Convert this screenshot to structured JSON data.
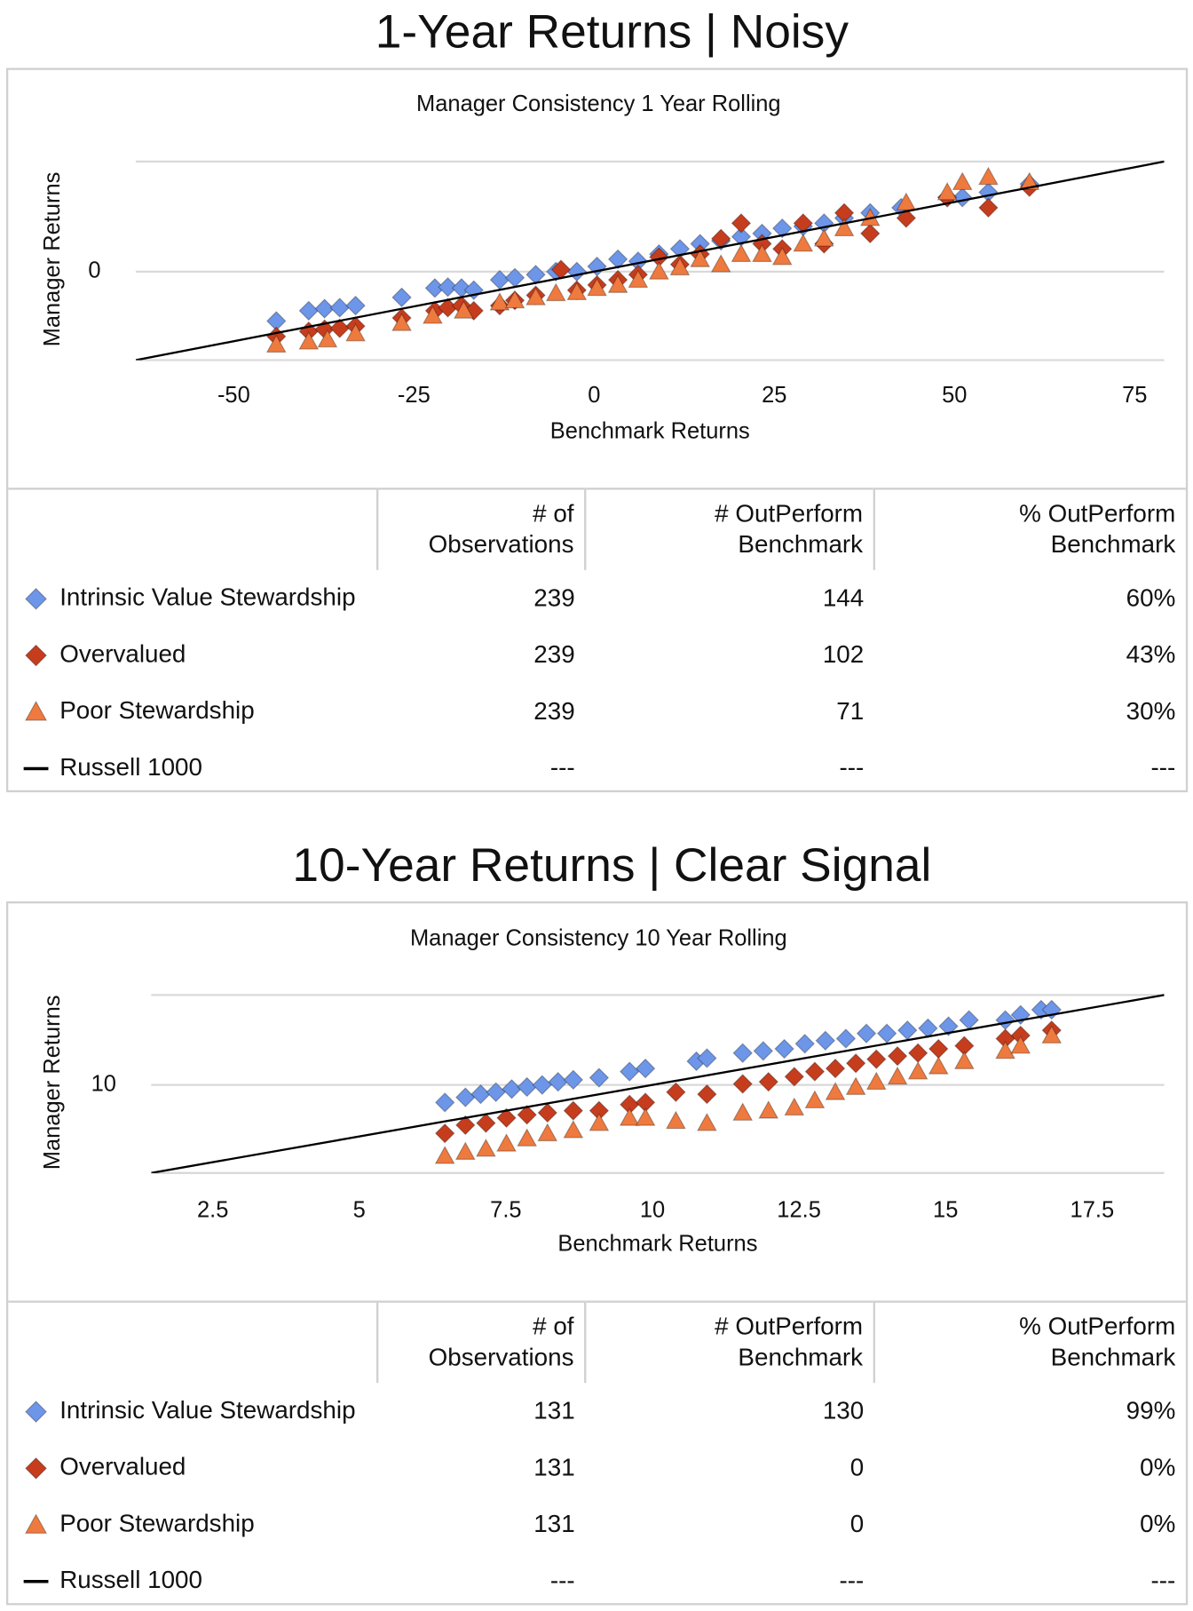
{
  "chart_data": [
    {
      "type": "scatter",
      "heading": "1-Year Returns | Noisy",
      "title": "Manager Consistency 1 Year Rolling",
      "xlabel": "Benchmark Returns",
      "ylabel": "Manager Returns",
      "xlim": [
        -63.6,
        79.1
      ],
      "ylim": [
        -63.6,
        79.1
      ],
      "xticks": [
        -50,
        -25,
        0,
        25,
        50,
        75
      ],
      "yticks": [
        0
      ],
      "grid": true,
      "series": [
        {
          "name": "Intrinsic Value Stewardship",
          "color": "#6d95e8",
          "marker": "diamond",
          "x": [
            -44.1,
            -39.6,
            -37.4,
            -35.3,
            -33.1,
            -26.7,
            -22.1,
            -20.3,
            -18.4,
            -16.7,
            -13.1,
            -11.0,
            -8.1,
            -5.3,
            -2.4,
            0.4,
            3.3,
            6.1,
            9.0,
            11.9,
            14.7,
            17.6,
            20.4,
            23.3,
            26.1,
            29.0,
            31.9,
            34.7,
            38.3,
            42.6,
            49.0,
            51.1,
            54.7,
            60.4
          ],
          "values": [
            -35.5,
            -28.1,
            -26.6,
            -25.9,
            -24.4,
            -18.5,
            -11.8,
            -11.1,
            -11.8,
            -13.3,
            -5.9,
            -4.4,
            -2.2,
            0,
            0,
            3.7,
            8.9,
            7.4,
            12.6,
            16.3,
            20.0,
            22.2,
            25.1,
            27.4,
            31.1,
            32.5,
            34.8,
            38.5,
            42.2,
            45.9,
            53.3,
            53.3,
            57.0,
            62.9
          ]
        },
        {
          "name": "Overvalued",
          "color": "#c63d1e",
          "marker": "diamond",
          "x": [
            -44.1,
            -39.6,
            -37.4,
            -35.3,
            -33.1,
            -26.7,
            -22.1,
            -20.3,
            -18.4,
            -16.7,
            -13.1,
            -11.0,
            -8.1,
            -4.6,
            -2.4,
            0.4,
            3.3,
            6.1,
            9.0,
            11.9,
            14.7,
            17.6,
            20.4,
            23.3,
            26.1,
            29.0,
            31.9,
            34.7,
            38.3,
            43.3,
            49.0,
            54.7,
            60.4
          ],
          "values": [
            -46.6,
            -42.9,
            -41.4,
            -40.7,
            -39.2,
            -33.3,
            -28.1,
            -25.9,
            -24.4,
            -28.1,
            -24.4,
            -20.7,
            -17.0,
            1.5,
            -13.3,
            -9.6,
            -5.9,
            -2.2,
            10.4,
            5.2,
            12.6,
            23.7,
            34.8,
            20.0,
            16.3,
            34.8,
            20.0,
            42.2,
            27.4,
            38.5,
            53.3,
            45.9,
            60.7
          ]
        },
        {
          "name": "Poor Stewardship",
          "color": "#ee7a3f",
          "marker": "triangle",
          "x": [
            -44.1,
            -39.6,
            -37.0,
            -33.1,
            -26.7,
            -22.4,
            -18.1,
            -13.1,
            -11.0,
            -8.1,
            -5.3,
            -2.4,
            0.4,
            3.3,
            6.1,
            9.0,
            11.9,
            14.7,
            17.6,
            20.4,
            23.3,
            26.1,
            29.0,
            31.9,
            34.7,
            38.3,
            43.3,
            49.0,
            51.1,
            54.7,
            60.4
          ],
          "values": [
            -52.5,
            -50.3,
            -48.8,
            -44.4,
            -37.0,
            -31.8,
            -28.1,
            -22.2,
            -20.7,
            -18.5,
            -15.5,
            -14.8,
            -11.8,
            -9.6,
            -5.9,
            0,
            3.0,
            8.9,
            5.2,
            12.6,
            12.6,
            10.4,
            20.0,
            23.7,
            31.1,
            38.5,
            49.6,
            57.0,
            64.3,
            68.0,
            64.3
          ]
        },
        {
          "name": "Russell 1000",
          "color": "#000000",
          "marker": "line",
          "x": [
            -63.6,
            79.1
          ],
          "values": [
            -63.6,
            79.1
          ]
        }
      ],
      "table": {
        "columns": [
          "# of Observations",
          "# OutPerform Benchmark",
          "% OutPerform Benchmark"
        ],
        "rows": [
          [
            "239",
            "144",
            "60%"
          ],
          [
            "239",
            "102",
            "43%"
          ],
          [
            "239",
            "71",
            "30%"
          ],
          [
            "---",
            "---",
            "---"
          ]
        ]
      }
    },
    {
      "type": "scatter",
      "heading": "10-Year Returns | Clear Signal",
      "title": "Manager Consistency 10 Year Rolling",
      "xlabel": "Benchmark Returns",
      "ylabel": "Manager Returns",
      "xlim": [
        1.45,
        18.73
      ],
      "ylim": [
        1.45,
        18.73
      ],
      "xticks": [
        2.5,
        5,
        7.5,
        10,
        12.5,
        15,
        17.5
      ],
      "yticks": [
        10
      ],
      "grid": true,
      "series": [
        {
          "name": "Intrinsic Value Stewardship",
          "color": "#6d95e8",
          "marker": "diamond",
          "x": [
            6.46,
            6.81,
            7.07,
            7.33,
            7.6,
            7.86,
            8.12,
            8.39,
            8.65,
            9.09,
            9.61,
            9.88,
            10.75,
            10.93,
            11.54,
            11.89,
            12.25,
            12.6,
            12.95,
            13.3,
            13.65,
            14.0,
            14.35,
            14.7,
            15.05,
            15.4,
            16.02,
            16.28,
            16.63,
            16.81
          ],
          "values": [
            8.3,
            8.8,
            9.1,
            9.3,
            9.6,
            9.8,
            10.0,
            10.3,
            10.5,
            10.7,
            11.3,
            11.6,
            12.3,
            12.6,
            13.1,
            13.3,
            13.5,
            14.0,
            14.3,
            14.5,
            15.0,
            15.0,
            15.3,
            15.5,
            15.7,
            16.3,
            16.3,
            16.8,
            17.3,
            17.3
          ]
        },
        {
          "name": "Overvalued",
          "color": "#c63d1e",
          "marker": "diamond",
          "x": [
            6.46,
            6.81,
            7.16,
            7.51,
            7.86,
            8.21,
            8.65,
            9.09,
            9.61,
            9.88,
            10.4,
            10.93,
            11.54,
            11.98,
            12.42,
            12.77,
            13.12,
            13.47,
            13.82,
            14.18,
            14.53,
            14.88,
            15.32,
            16.02,
            16.28,
            16.81
          ],
          "values": [
            5.3,
            6.1,
            6.3,
            6.8,
            7.1,
            7.3,
            7.5,
            7.5,
            8.1,
            8.3,
            9.3,
            9.1,
            10.1,
            10.3,
            10.8,
            11.3,
            11.6,
            12.1,
            12.5,
            12.8,
            13.1,
            13.5,
            13.8,
            14.5,
            14.8,
            15.3
          ]
        },
        {
          "name": "Poor Stewardship",
          "color": "#ee7a3f",
          "marker": "triangle",
          "x": [
            6.46,
            6.81,
            7.16,
            7.51,
            7.86,
            8.21,
            8.65,
            9.09,
            9.61,
            9.88,
            10.4,
            10.93,
            11.54,
            11.98,
            12.42,
            12.77,
            13.12,
            13.47,
            13.82,
            14.18,
            14.53,
            14.88,
            15.32,
            16.02,
            16.28,
            16.81
          ],
          "values": [
            3.1,
            3.5,
            3.8,
            4.3,
            4.8,
            5.3,
            5.6,
            6.3,
            6.8,
            6.8,
            6.5,
            6.3,
            7.3,
            7.5,
            7.8,
            8.5,
            9.3,
            9.8,
            10.3,
            10.8,
            11.3,
            11.8,
            12.3,
            13.3,
            13.8,
            14.8
          ]
        },
        {
          "name": "Russell 1000",
          "color": "#000000",
          "marker": "line",
          "x": [
            1.45,
            18.73
          ],
          "values": [
            1.45,
            18.73
          ]
        }
      ],
      "table": {
        "columns": [
          "# of Observations",
          "# OutPerform Benchmark",
          "% OutPerform Benchmark"
        ],
        "rows": [
          [
            "131",
            "130",
            "99%"
          ],
          [
            "131",
            "0",
            "0%"
          ],
          [
            "131",
            "0",
            "0%"
          ],
          [
            "---",
            "---",
            "---"
          ]
        ]
      }
    }
  ]
}
